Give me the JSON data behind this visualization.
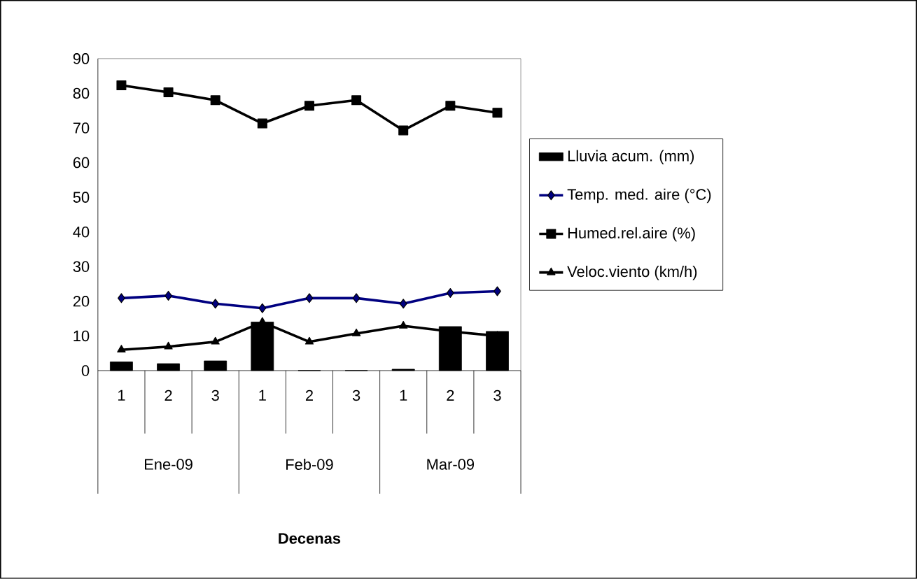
{
  "chart_data": {
    "type": "line",
    "categories": [
      "1",
      "2",
      "3",
      "1",
      "2",
      "3",
      "1",
      "2",
      "3"
    ],
    "annotations": [
      "Ene-09",
      "Feb-09",
      "Mar-09",
      "Decenas"
    ],
    "series": [
      {
        "name": "Lluvia acum. (mm)",
        "type": "bar",
        "color": "#000000",
        "values": [
          2.5,
          2,
          2.8,
          14,
          0,
          0,
          0.4,
          12.7,
          11.3
        ]
      },
      {
        "name": "Temp. med. aire (°C)",
        "type": "line",
        "marker": "diamond",
        "color": "#000080",
        "values": [
          20.9,
          21.6,
          19.3,
          18,
          20.9,
          20.9,
          19.3,
          22.4,
          22.9
        ]
      },
      {
        "name": "Humed.rel.aire (%)",
        "type": "line",
        "marker": "square",
        "color": "#000000",
        "values": [
          82.3,
          80.3,
          78,
          71.3,
          76.4,
          78,
          69.3,
          76.4,
          74.4
        ]
      },
      {
        "name": "Veloc.viento (km/h)",
        "type": "line",
        "marker": "triangle",
        "color": "#000000",
        "values": [
          6,
          6.9,
          8.3,
          14,
          8.3,
          10.7,
          12.9,
          11.3,
          10
        ]
      }
    ],
    "ylim": [
      0,
      90
    ],
    "yticks": [
      0,
      10,
      20,
      30,
      40,
      50,
      60,
      70,
      80,
      90
    ],
    "legend": "right",
    "grid": false
  }
}
